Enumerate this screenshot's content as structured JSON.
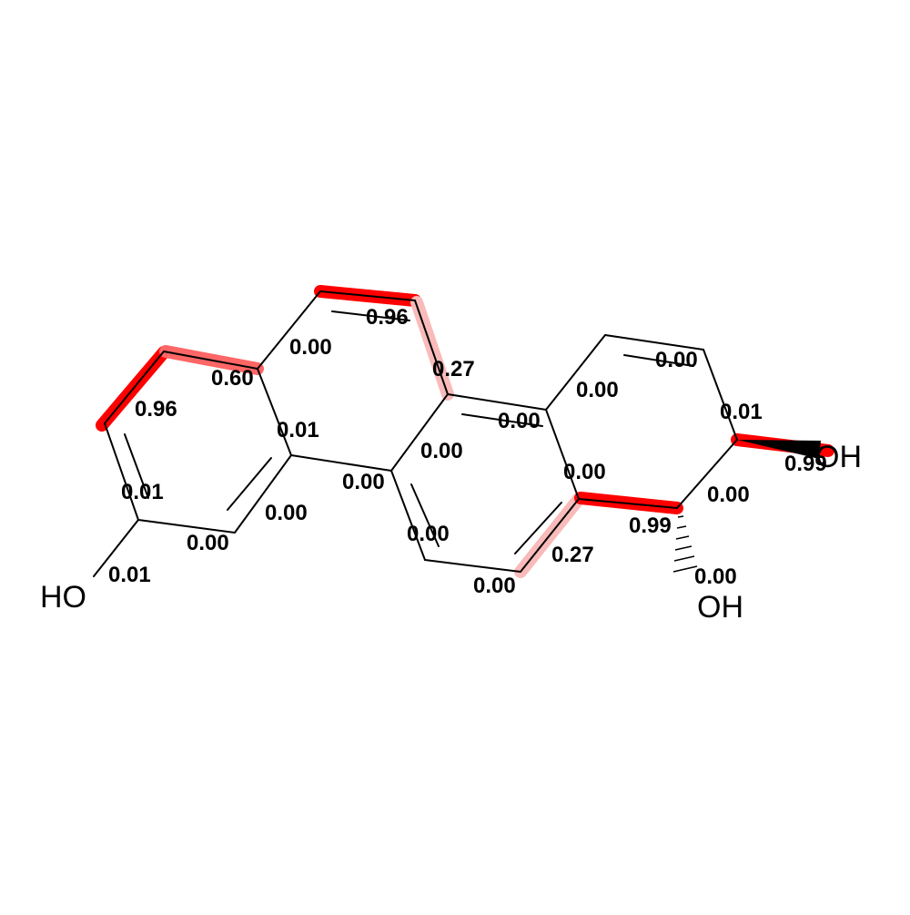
{
  "molecule": {
    "atom_labels": {
      "ho_left": "HO",
      "oh_right_upper": "OH",
      "oh_right_lower": "OH"
    },
    "bond_scores": {
      "s1": "0.96",
      "s2": "0.00",
      "s3": "0.60",
      "s4": "0.27",
      "s5": "0.96",
      "s6": "0.00",
      "s7": "0.00",
      "s8": "0.01",
      "s9": "0.00",
      "s10": "0.00",
      "s11": "0.01",
      "s12": "0.00",
      "s13": "0.99",
      "s14": "0.01",
      "s15": "0.00",
      "s16": "0.00",
      "s17": "0.00",
      "s18": "0.00",
      "s19": "0.00",
      "s20": "0.99",
      "s21": "0.00",
      "s22": "0.27",
      "s23": "0.01",
      "s24": "0.00",
      "s25": "0.00"
    },
    "highlight_colors": {
      "strong": "#ff0000",
      "medium": "#ff6666",
      "weak": "#f9baba"
    }
  }
}
